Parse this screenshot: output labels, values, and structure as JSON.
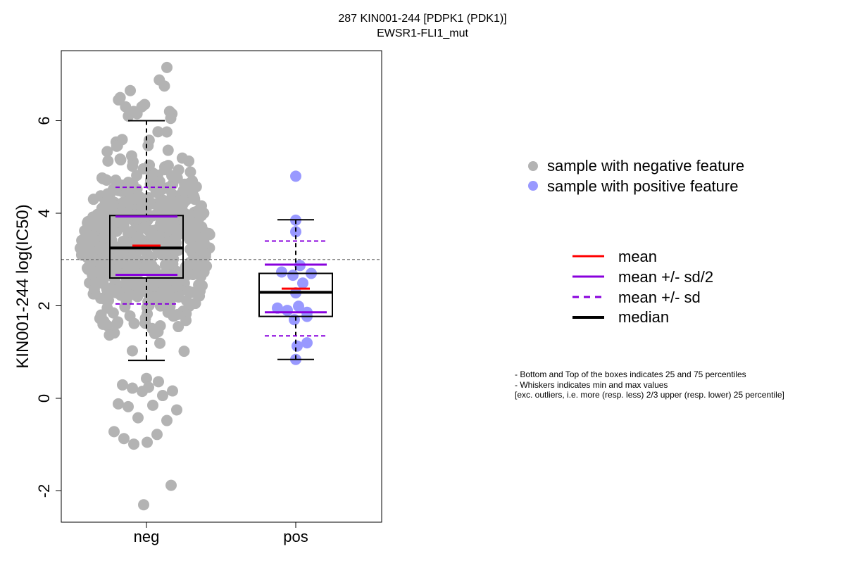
{
  "chart_data": {
    "type": "scatter",
    "title": "287 KIN001-244 [PDPK1 (PDK1)]",
    "subtitle": "EWSR1-FLI1_mut",
    "ylabel": "KIN001-244 log(IC50)",
    "xlabel": "",
    "categories": [
      "neg",
      "pos"
    ],
    "ylim": [
      -2.6,
      7.4
    ],
    "yticks": [
      -2,
      0,
      2,
      4,
      6
    ],
    "reference_line_y": 3.0,
    "colors": {
      "neg": "#b3b3b3",
      "pos": "#9999ff",
      "mean": "#ff0000",
      "sd": "#8800dd",
      "median": "#000000"
    },
    "boxes": [
      {
        "group": "neg",
        "whisker_min": 0.82,
        "q1": 2.6,
        "median": 3.25,
        "q3": 3.95,
        "whisker_max": 6.0,
        "mean": 3.3,
        "mean_minus_half_sd": 2.67,
        "mean_plus_half_sd": 3.93,
        "mean_minus_sd": 2.04,
        "mean_plus_sd": 4.56
      },
      {
        "group": "pos",
        "whisker_min": 0.84,
        "q1": 1.77,
        "median": 2.29,
        "q3": 2.7,
        "whisker_max": 3.86,
        "mean": 2.37,
        "mean_minus_half_sd": 1.86,
        "mean_plus_half_sd": 2.89,
        "mean_minus_sd": 1.35,
        "mean_plus_sd": 3.4
      }
    ],
    "neg_outliers": [
      0.43,
      0.36,
      0.29,
      0.24,
      0.22,
      0.16,
      0.15,
      0.06,
      -0.12,
      -0.15,
      -0.18,
      -0.25,
      -0.42,
      -0.48,
      -0.72,
      -0.78,
      -0.87,
      -0.95,
      -0.99,
      -1.88,
      -2.3
    ],
    "neg_upper_points": [
      6.88,
      7.15,
      6.75,
      6.65,
      6.5,
      6.45,
      6.35,
      6.3,
      6.3,
      6.2,
      6.2,
      6.15,
      6.15,
      6.1,
      6.05
    ],
    "pos_points": [
      4.8,
      3.85,
      3.6,
      2.87,
      2.73,
      2.7,
      2.66,
      2.49,
      2.28,
      1.99,
      1.95,
      1.9,
      1.86,
      1.77,
      1.7,
      1.2,
      1.13,
      0.84
    ],
    "legend": {
      "points": [
        "sample with negative feature",
        "sample with positive feature"
      ],
      "lines": [
        "mean",
        "mean +/- sd/2",
        "mean +/- sd",
        "median"
      ]
    },
    "notes": [
      "- Bottom and Top of the boxes indicates 25 and 75 percentiles",
      "- Whiskers indicates min and max values",
      "[exc. outliers, i.e. more (resp. less) 2/3 upper (resp. lower) 25 percentile]"
    ]
  }
}
